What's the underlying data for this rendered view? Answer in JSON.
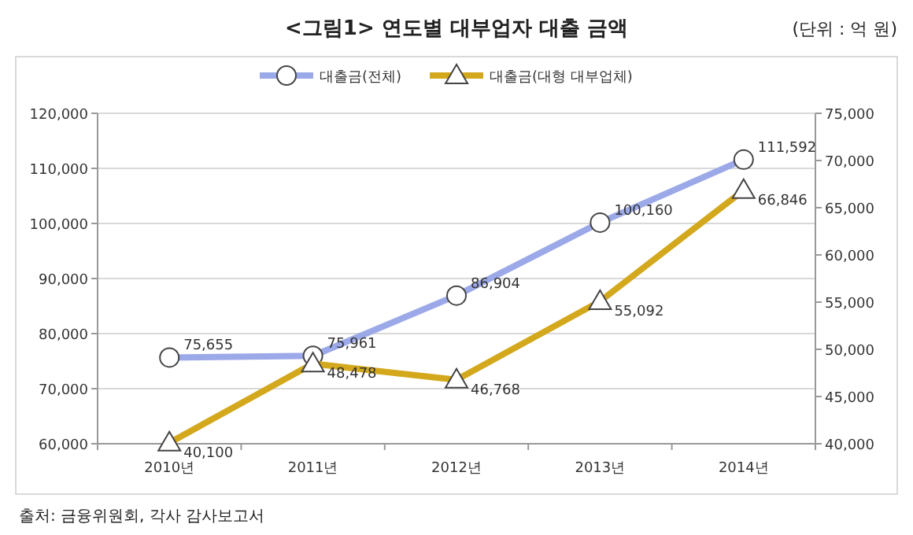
{
  "chart_data": {
    "type": "line",
    "title": "<그림1> 연도별 대부업자 대출 금액",
    "subtitle": "(단위 : 억 원)",
    "categories": [
      "2010년",
      "2011년",
      "2012년",
      "2013년",
      "2014년"
    ],
    "series": [
      {
        "name": "대출금(전체)",
        "color": "#9ba9e8",
        "marker": "circle",
        "values": [
          75655,
          75961,
          86904,
          100160,
          111592
        ],
        "value_labels": [
          "75,655",
          "75,961",
          "86,904",
          "100,160",
          "111,592"
        ]
      },
      {
        "name": "대출금(대형 대부업체)",
        "color": "#d4a81c",
        "marker": "triangle",
        "axis": "y2",
        "values": [
          40100,
          48478,
          46768,
          55092,
          66846
        ],
        "value_labels": [
          "40,100",
          "48,478",
          "46,768",
          "55,092",
          "66,846"
        ]
      }
    ],
    "ylim": [
      60000,
      120000
    ],
    "yticks": [
      {
        "value": 60000,
        "label": "60,000"
      },
      {
        "value": 70000,
        "label": "70,000"
      },
      {
        "value": 80000,
        "label": "80,000"
      },
      {
        "value": 90000,
        "label": "90,000"
      },
      {
        "value": 100000,
        "label": "100,000"
      },
      {
        "value": 110000,
        "label": "110,000"
      },
      {
        "value": 120000,
        "label": "120,000"
      }
    ],
    "y2lim": [
      40000,
      75000
    ],
    "y2ticks": [
      {
        "value": 40000,
        "label": "40,000"
      },
      {
        "value": 45000,
        "label": "45,000"
      },
      {
        "value": 50000,
        "label": "50,000"
      },
      {
        "value": 55000,
        "label": "55,000"
      },
      {
        "value": 60000,
        "label": "60,000"
      },
      {
        "value": 65000,
        "label": "65,000"
      },
      {
        "value": 70000,
        "label": "70,000"
      },
      {
        "value": 75000,
        "label": "75,000"
      }
    ],
    "grid": "y",
    "legend": "top",
    "annotations": [
      "출처: 금융위원회, 각사 감사보고서"
    ]
  }
}
